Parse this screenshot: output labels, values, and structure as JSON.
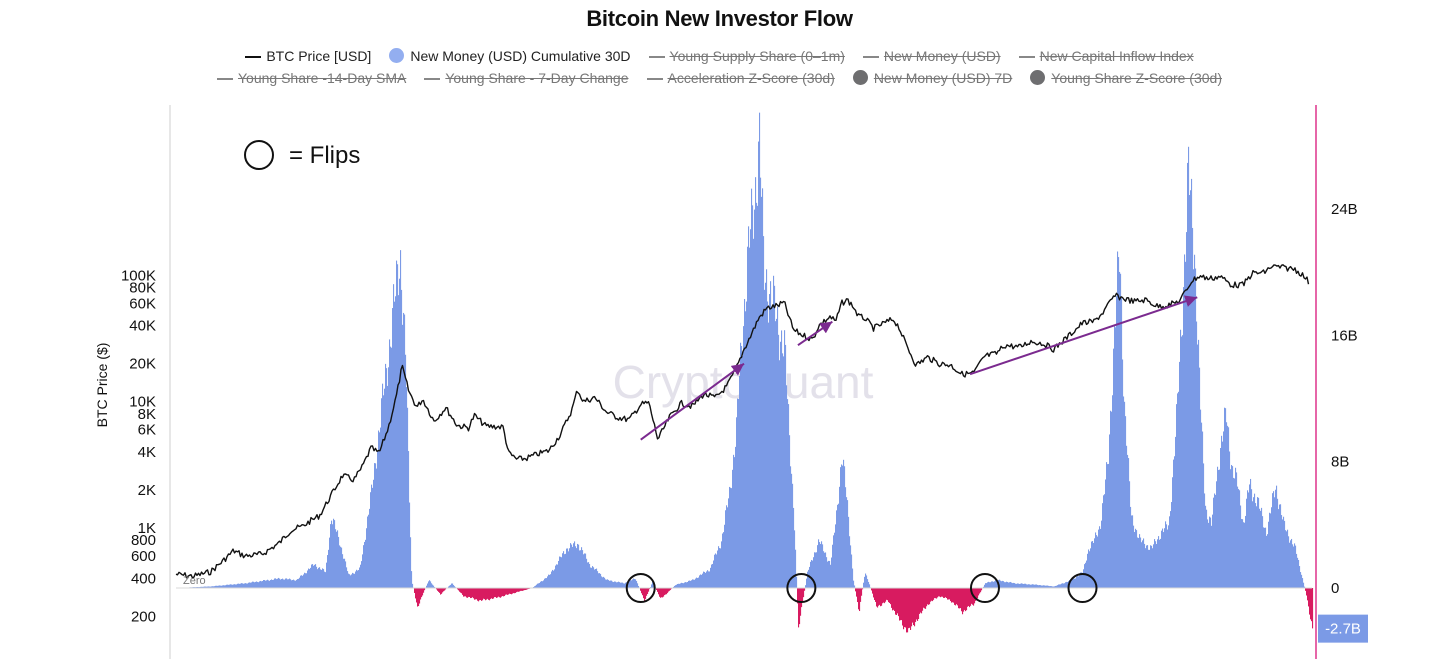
{
  "title": "Bitcoin New Investor Flow",
  "legend": {
    "row1": [
      {
        "label": "BTC Price [USD]",
        "kind": "line",
        "active": true
      },
      {
        "label": "New Money (USD) Cumulative 30D",
        "kind": "dot",
        "color": "#93aef0",
        "active": true
      },
      {
        "label": "Young Supply Share (0–1m)",
        "kind": "line",
        "active": false
      },
      {
        "label": "New Money (USD)",
        "kind": "line",
        "active": false
      },
      {
        "label": "New Capital Inflow Index",
        "kind": "line",
        "active": false
      }
    ],
    "row2": [
      {
        "label": "Young Share -14-Day SMA",
        "kind": "line",
        "active": false
      },
      {
        "label": "Young Share - 7-Day Change",
        "kind": "line",
        "active": false
      },
      {
        "label": "Acceleration Z-Score (30d)",
        "kind": "line",
        "active": false
      },
      {
        "label": "New Money (USD) 7D",
        "kind": "dot",
        "color": "#6e6e70",
        "active": false
      },
      {
        "label": "Young Share Z-Score (30d)",
        "kind": "dot",
        "color": "#6e6e70",
        "active": false
      }
    ]
  },
  "annotation": {
    "flips_label": "= Flips"
  },
  "watermark": "CryptoQuant",
  "zero_label": "Zero",
  "colors": {
    "price_line": "#111111",
    "positive_fill": "#7b9ae6",
    "negative_fill": "#d81b60",
    "arrow": "#7b2a8f",
    "right_axis": "#d6006e",
    "badge": "#7b9ae6"
  },
  "chart_data": {
    "type": "line",
    "left_axis": {
      "label": "BTC Price ($)",
      "scale": "log",
      "ticks": [
        {
          "v": 100000,
          "t": "100K"
        },
        {
          "v": 80000,
          "t": "80K"
        },
        {
          "v": 60000,
          "t": "60K"
        },
        {
          "v": 40000,
          "t": "40K"
        },
        {
          "v": 20000,
          "t": "20K"
        },
        {
          "v": 10000,
          "t": "10K"
        },
        {
          "v": 8000,
          "t": "8K"
        },
        {
          "v": 6000,
          "t": "6K"
        },
        {
          "v": 4000,
          "t": "4K"
        },
        {
          "v": 2000,
          "t": "2K"
        },
        {
          "v": 1000,
          "t": "1K"
        },
        {
          "v": 800,
          "t": "800"
        },
        {
          "v": 600,
          "t": "600"
        },
        {
          "v": 400,
          "t": "400"
        },
        {
          "v": 200,
          "t": "200"
        }
      ]
    },
    "right_axis": {
      "unit": "USD",
      "ticks": [
        {
          "v": 24,
          "t": "24B"
        },
        {
          "v": 16,
          "t": "16B"
        },
        {
          "v": 8,
          "t": "8B"
        },
        {
          "v": 0,
          "t": "0"
        }
      ],
      "current_value_label": "-2.7B",
      "current_value": -2.7
    },
    "x_range": [
      2016.0,
      2025.9
    ],
    "series": [
      {
        "name": "BTC Price [USD]",
        "axis": "left",
        "points": [
          [
            2016.0,
            430
          ],
          [
            2016.15,
            415
          ],
          [
            2016.3,
            450
          ],
          [
            2016.42,
            560
          ],
          [
            2016.5,
            660
          ],
          [
            2016.6,
            600
          ],
          [
            2016.75,
            620
          ],
          [
            2016.9,
            760
          ],
          [
            2017.0,
            960
          ],
          [
            2017.1,
            1030
          ],
          [
            2017.18,
            1150
          ],
          [
            2017.25,
            1250
          ],
          [
            2017.35,
            1800
          ],
          [
            2017.45,
            2600
          ],
          [
            2017.55,
            2400
          ],
          [
            2017.62,
            3000
          ],
          [
            2017.7,
            4300
          ],
          [
            2017.77,
            3900
          ],
          [
            2017.85,
            6200
          ],
          [
            2017.92,
            11000
          ],
          [
            2017.97,
            19000
          ],
          [
            2018.03,
            12000
          ],
          [
            2018.1,
            9000
          ],
          [
            2018.15,
            10500
          ],
          [
            2018.25,
            7000
          ],
          [
            2018.35,
            9000
          ],
          [
            2018.45,
            6500
          ],
          [
            2018.55,
            6200
          ],
          [
            2018.6,
            7800
          ],
          [
            2018.7,
            6400
          ],
          [
            2018.85,
            6300
          ],
          [
            2018.9,
            3900
          ],
          [
            2018.97,
            3500
          ],
          [
            2019.05,
            3550
          ],
          [
            2019.15,
            3850
          ],
          [
            2019.25,
            4100
          ],
          [
            2019.35,
            5500
          ],
          [
            2019.45,
            8600
          ],
          [
            2019.5,
            12500
          ],
          [
            2019.55,
            10000
          ],
          [
            2019.65,
            10800
          ],
          [
            2019.75,
            8300
          ],
          [
            2019.85,
            7500
          ],
          [
            2019.95,
            7200
          ],
          [
            2020.05,
            9500
          ],
          [
            2020.12,
            9800
          ],
          [
            2020.2,
            5000
          ],
          [
            2020.3,
            7500
          ],
          [
            2020.4,
            9700
          ],
          [
            2020.5,
            9200
          ],
          [
            2020.6,
            11500
          ],
          [
            2020.7,
            10700
          ],
          [
            2020.8,
            13200
          ],
          [
            2020.88,
            18000
          ],
          [
            2020.95,
            26000
          ],
          [
            2021.0,
            32000
          ],
          [
            2021.08,
            46000
          ],
          [
            2021.15,
            55000
          ],
          [
            2021.25,
            58000
          ],
          [
            2021.3,
            61000
          ],
          [
            2021.38,
            37000
          ],
          [
            2021.45,
            34000
          ],
          [
            2021.55,
            31000
          ],
          [
            2021.6,
            40000
          ],
          [
            2021.7,
            47000
          ],
          [
            2021.75,
            43000
          ],
          [
            2021.8,
            60000
          ],
          [
            2021.85,
            64000
          ],
          [
            2021.9,
            57000
          ],
          [
            2021.95,
            47000
          ],
          [
            2022.0,
            46000
          ],
          [
            2022.08,
            38000
          ],
          [
            2022.15,
            41000
          ],
          [
            2022.25,
            45000
          ],
          [
            2022.3,
            39000
          ],
          [
            2022.35,
            30000
          ],
          [
            2022.45,
            19500
          ],
          [
            2022.55,
            22500
          ],
          [
            2022.65,
            20000
          ],
          [
            2022.75,
            19500
          ],
          [
            2022.85,
            16500
          ],
          [
            2022.95,
            16800
          ],
          [
            2023.05,
            23000
          ],
          [
            2023.15,
            24000
          ],
          [
            2023.22,
            28000
          ],
          [
            2023.35,
            27000
          ],
          [
            2023.45,
            30000
          ],
          [
            2023.55,
            29000
          ],
          [
            2023.65,
            26000
          ],
          [
            2023.8,
            34500
          ],
          [
            2023.9,
            42000
          ],
          [
            2024.0,
            43000
          ],
          [
            2024.08,
            51000
          ],
          [
            2024.18,
            69000
          ],
          [
            2024.25,
            66000
          ],
          [
            2024.35,
            62000
          ],
          [
            2024.45,
            64000
          ],
          [
            2024.55,
            57000
          ],
          [
            2024.65,
            58000
          ],
          [
            2024.75,
            63000
          ],
          [
            2024.85,
            90000
          ],
          [
            2024.92,
            99000
          ],
          [
            2025.0,
            94000
          ],
          [
            2025.1,
            98000
          ],
          [
            2025.2,
            84000
          ],
          [
            2025.3,
            84000
          ],
          [
            2025.38,
            104000
          ],
          [
            2025.48,
            105000
          ],
          [
            2025.55,
            118000
          ],
          [
            2025.65,
            115000
          ],
          [
            2025.75,
            112000
          ],
          [
            2025.8,
            104000
          ],
          [
            2025.85,
            94000
          ],
          [
            2025.88,
            86000
          ]
        ]
      },
      {
        "name": "New Money (USD) Cumulative 30D",
        "axis": "right",
        "unit": "B USD",
        "points": [
          [
            2016.0,
            0
          ],
          [
            2016.3,
            0.1
          ],
          [
            2016.6,
            0.3
          ],
          [
            2016.9,
            0.6
          ],
          [
            2017.05,
            0.5
          ],
          [
            2017.2,
            1.5
          ],
          [
            2017.3,
            1.0
          ],
          [
            2017.35,
            4.5
          ],
          [
            2017.42,
            3.0
          ],
          [
            2017.5,
            0.8
          ],
          [
            2017.6,
            1.2
          ],
          [
            2017.7,
            6.0
          ],
          [
            2017.8,
            12.0
          ],
          [
            2017.9,
            18.0
          ],
          [
            2017.95,
            21.3
          ],
          [
            2018.0,
            14.0
          ],
          [
            2018.05,
            0.5
          ],
          [
            2018.1,
            -1.2
          ],
          [
            2018.2,
            0.5
          ],
          [
            2018.3,
            -0.4
          ],
          [
            2018.4,
            0.3
          ],
          [
            2018.5,
            -0.5
          ],
          [
            2018.65,
            -0.8
          ],
          [
            2018.8,
            -0.6
          ],
          [
            2018.95,
            -0.3
          ],
          [
            2019.1,
            0
          ],
          [
            2019.25,
            0.8
          ],
          [
            2019.4,
            2.5
          ],
          [
            2019.5,
            2.8
          ],
          [
            2019.6,
            1.5
          ],
          [
            2019.75,
            0.5
          ],
          [
            2019.9,
            0.3
          ],
          [
            2020.0,
            0.6
          ],
          [
            2020.08,
            -0.8
          ],
          [
            2020.15,
            0.4
          ],
          [
            2020.22,
            -0.7
          ],
          [
            2020.35,
            0.2
          ],
          [
            2020.5,
            0.5
          ],
          [
            2020.65,
            1.2
          ],
          [
            2020.75,
            3.0
          ],
          [
            2020.82,
            6.0
          ],
          [
            2020.88,
            10.0
          ],
          [
            2020.93,
            16.0
          ],
          [
            2020.98,
            21.0
          ],
          [
            2021.03,
            24.0
          ],
          [
            2021.08,
            28.5
          ],
          [
            2021.12,
            20.0
          ],
          [
            2021.2,
            18.0
          ],
          [
            2021.3,
            15.0
          ],
          [
            2021.38,
            5.0
          ],
          [
            2021.42,
            -2.5
          ],
          [
            2021.5,
            1.0
          ],
          [
            2021.6,
            3.0
          ],
          [
            2021.7,
            1.5
          ],
          [
            2021.75,
            4.5
          ],
          [
            2021.8,
            8.5
          ],
          [
            2021.85,
            5.0
          ],
          [
            2021.9,
            0.5
          ],
          [
            2021.95,
            -1.5
          ],
          [
            2022.0,
            1.0
          ],
          [
            2022.05,
            0
          ],
          [
            2022.1,
            -1.2
          ],
          [
            2022.2,
            -0.8
          ],
          [
            2022.3,
            -2.0
          ],
          [
            2022.38,
            -2.8
          ],
          [
            2022.45,
            -2.0
          ],
          [
            2022.55,
            -1.0
          ],
          [
            2022.65,
            -0.5
          ],
          [
            2022.75,
            -0.8
          ],
          [
            2022.85,
            -1.5
          ],
          [
            2022.95,
            -1.0
          ],
          [
            2023.05,
            0.3
          ],
          [
            2023.15,
            0.5
          ],
          [
            2023.3,
            0.3
          ],
          [
            2023.5,
            0.2
          ],
          [
            2023.65,
            0.1
          ],
          [
            2023.8,
            0.5
          ],
          [
            2023.9,
            1.0
          ],
          [
            2023.95,
            2.5
          ],
          [
            2024.0,
            3.0
          ],
          [
            2024.05,
            4.0
          ],
          [
            2024.12,
            8.0
          ],
          [
            2024.18,
            17.0
          ],
          [
            2024.22,
            21.0
          ],
          [
            2024.26,
            12.0
          ],
          [
            2024.32,
            4.5
          ],
          [
            2024.4,
            3.0
          ],
          [
            2024.5,
            2.5
          ],
          [
            2024.58,
            3.5
          ],
          [
            2024.65,
            4.0
          ],
          [
            2024.72,
            11.0
          ],
          [
            2024.78,
            20.0
          ],
          [
            2024.82,
            26.0
          ],
          [
            2024.87,
            22.0
          ],
          [
            2024.92,
            12.0
          ],
          [
            2024.97,
            5.0
          ],
          [
            2025.02,
            4.0
          ],
          [
            2025.08,
            8.0
          ],
          [
            2025.15,
            11.0
          ],
          [
            2025.2,
            7.5
          ],
          [
            2025.25,
            6.5
          ],
          [
            2025.3,
            4.0
          ],
          [
            2025.35,
            6.5
          ],
          [
            2025.42,
            5.5
          ],
          [
            2025.5,
            3.5
          ],
          [
            2025.58,
            6.5
          ],
          [
            2025.65,
            4.0
          ],
          [
            2025.75,
            2.5
          ],
          [
            2025.8,
            1.0
          ],
          [
            2025.85,
            -0.5
          ],
          [
            2025.9,
            -2.7
          ]
        ]
      }
    ],
    "annotations": {
      "flip_circles_at": [
        2020.05,
        2021.45,
        2023.05,
        2023.9
      ],
      "trend_arrows": [
        {
          "from": [
            2020.05,
            5000
          ],
          "to": [
            2020.95,
            20000
          ]
        },
        {
          "from": [
            2021.42,
            28000
          ],
          "to": [
            2021.72,
            43000
          ]
        },
        {
          "from": [
            2022.92,
            16500
          ],
          "to": [
            2024.9,
            67000
          ]
        }
      ]
    }
  }
}
